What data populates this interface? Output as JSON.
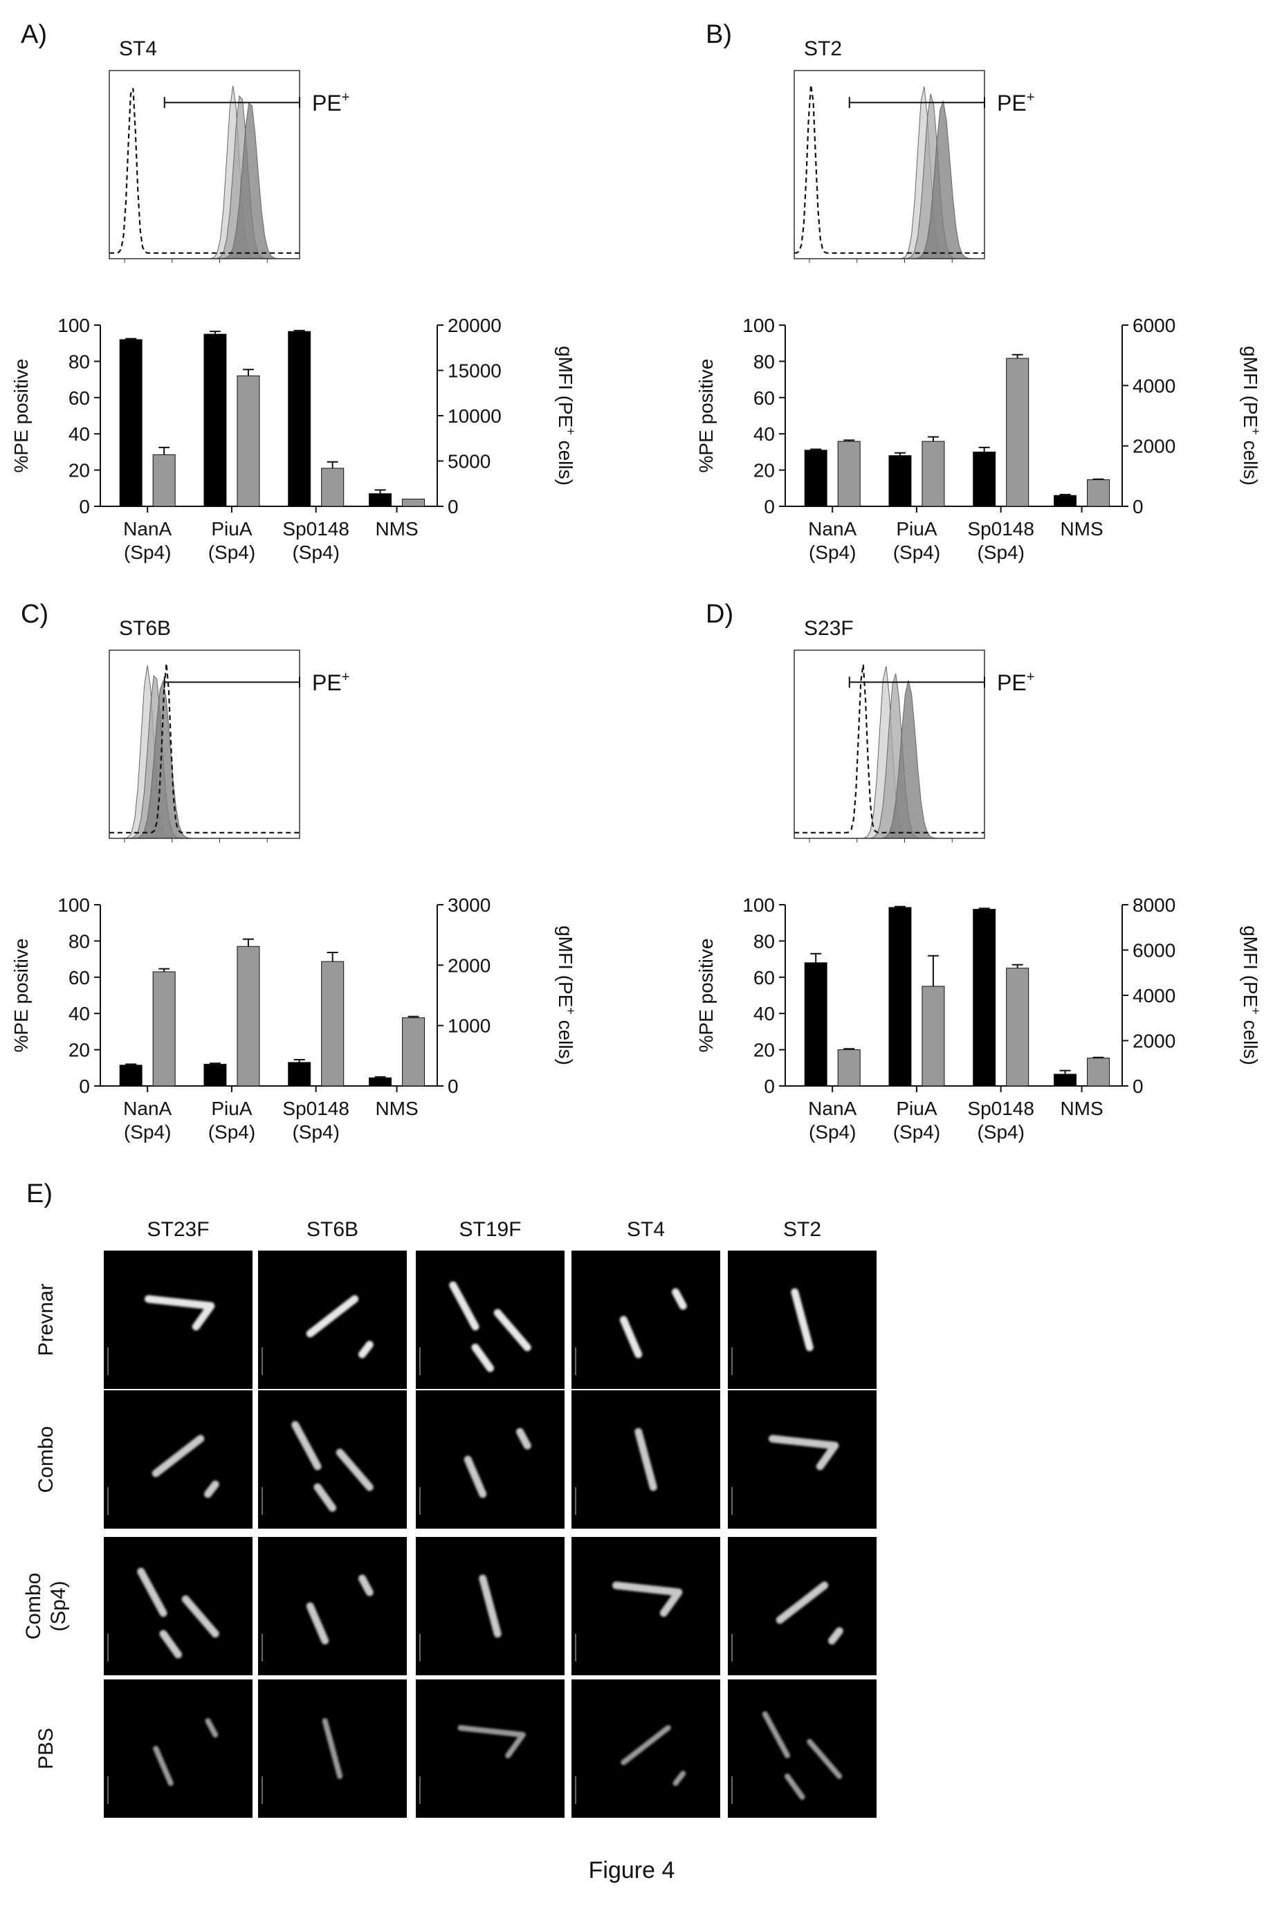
{
  "figure_caption": "Figure 4",
  "chart_data": [
    {
      "panel": "A)",
      "strain": "ST4",
      "type": "bar",
      "gate_label": "PE",
      "gate_superscript": "+",
      "categories": [
        "NanA\n(Sp4)",
        "PiuA\n(Sp4)",
        "Sp0148\n(Sp4)",
        "NMS"
      ],
      "series": [
        {
          "axis": "left",
          "color": "#000000",
          "values": [
            92,
            95,
            96.5,
            7
          ],
          "errors": [
            0.5,
            1.5,
            0.5,
            2
          ]
        },
        {
          "axis": "right",
          "color": "#999999",
          "values": [
            5700,
            14400,
            4200,
            800
          ],
          "errors": [
            800,
            700,
            700,
            0
          ]
        }
      ],
      "ylabel": "%PE positive",
      "ylim": [
        0,
        100
      ],
      "yticks": [
        "0",
        "20",
        "40",
        "60",
        "80",
        "100"
      ],
      "y2label": "gMFI (PE",
      "y2label_superscript": "+",
      "y2label_tail": " cells)",
      "y2lim": [
        0,
        20000
      ],
      "y2ticks": [
        "0",
        "5000",
        "10000",
        "15000",
        "20000"
      ],
      "histogram": {
        "filled_peaks": [
          0.65,
          0.69,
          0.74
        ],
        "dashed_peak": 0.12
      }
    },
    {
      "panel": "B)",
      "strain": "ST2",
      "type": "bar",
      "gate_label": "PE",
      "gate_superscript": "+",
      "categories": [
        "NanA\n(Sp4)",
        "PiuA\n(Sp4)",
        "Sp0148\n(Sp4)",
        "NMS"
      ],
      "series": [
        {
          "axis": "left",
          "color": "#000000",
          "values": [
            31,
            28,
            30,
            6
          ],
          "errors": [
            0.5,
            1.5,
            2.5,
            0.5
          ]
        },
        {
          "axis": "right",
          "color": "#999999",
          "values": [
            2150,
            2150,
            4900,
            880
          ],
          "errors": [
            40,
            150,
            120,
            20
          ]
        }
      ],
      "ylabel": "%PE positive",
      "ylim": [
        0,
        100
      ],
      "yticks": [
        "0",
        "20",
        "40",
        "60",
        "80",
        "100"
      ],
      "y2label": "gMFI (PE",
      "y2label_superscript": "+",
      "y2label_tail": " cells)",
      "y2lim": [
        0,
        6000
      ],
      "y2ticks": [
        "0",
        "2000",
        "4000",
        "6000"
      ],
      "histogram": {
        "filled_peaks": [
          0.68,
          0.72,
          0.78
        ],
        "dashed_peak": 0.09
      }
    },
    {
      "panel": "C)",
      "strain": "ST6B",
      "type": "bar",
      "gate_label": "PE",
      "gate_superscript": "+",
      "categories": [
        "NanA\n(Sp4)",
        "PiuA\n(Sp4)",
        "Sp0148\n(Sp4)",
        "NMS"
      ],
      "series": [
        {
          "axis": "left",
          "color": "#000000",
          "values": [
            11.5,
            12,
            13,
            4.5
          ],
          "errors": [
            0.5,
            0.5,
            1.5,
            0.5
          ]
        },
        {
          "axis": "right",
          "color": "#999999",
          "values": [
            1890,
            2310,
            2060,
            1130
          ],
          "errors": [
            50,
            120,
            150,
            20
          ]
        }
      ],
      "ylabel": "%PE positive",
      "ylim": [
        0,
        100
      ],
      "yticks": [
        "0",
        "20",
        "40",
        "60",
        "80",
        "100"
      ],
      "y2label": "gMFI (PE",
      "y2label_superscript": "+",
      "y2label_tail": " cells)",
      "y2lim": [
        0,
        3000
      ],
      "y2ticks": [
        "0",
        "1000",
        "2000",
        "3000"
      ],
      "histogram": {
        "filled_peaks": [
          0.2,
          0.24,
          0.28
        ],
        "dashed_peak": 0.3
      }
    },
    {
      "panel": "D)",
      "strain": "S23F",
      "type": "bar",
      "gate_label": "PE",
      "gate_superscript": "+",
      "categories": [
        "NanA\n(Sp4)",
        "PiuA\n(Sp4)",
        "Sp0148\n(Sp4)",
        "NMS"
      ],
      "series": [
        {
          "axis": "left",
          "color": "#000000",
          "values": [
            68,
            98.5,
            97.5,
            6.5
          ],
          "errors": [
            5,
            0.5,
            0.5,
            2
          ]
        },
        {
          "axis": "right",
          "color": "#999999",
          "values": [
            1600,
            4400,
            5200,
            1230
          ],
          "errors": [
            40,
            1350,
            150,
            30
          ]
        }
      ],
      "ylabel": "%PE positive",
      "ylim": [
        0,
        100
      ],
      "yticks": [
        "0",
        "20",
        "40",
        "60",
        "80",
        "100"
      ],
      "y2label": "gMFI (PE",
      "y2label_superscript": "+",
      "y2label_tail": " cells)",
      "y2lim": [
        0,
        8000
      ],
      "y2ticks": [
        "0",
        "2000",
        "4000",
        "6000",
        "8000"
      ],
      "histogram": {
        "filled_peaks": [
          0.48,
          0.53,
          0.6
        ],
        "dashed_peak": 0.36
      }
    }
  ],
  "microscopy": {
    "panel": "E)",
    "columns": [
      "ST23F",
      "ST6B",
      "ST19F",
      "ST4",
      "ST2"
    ],
    "rows": [
      "Prevnar",
      "Combo",
      "Combo\n(Sp4)",
      "PBS"
    ]
  }
}
